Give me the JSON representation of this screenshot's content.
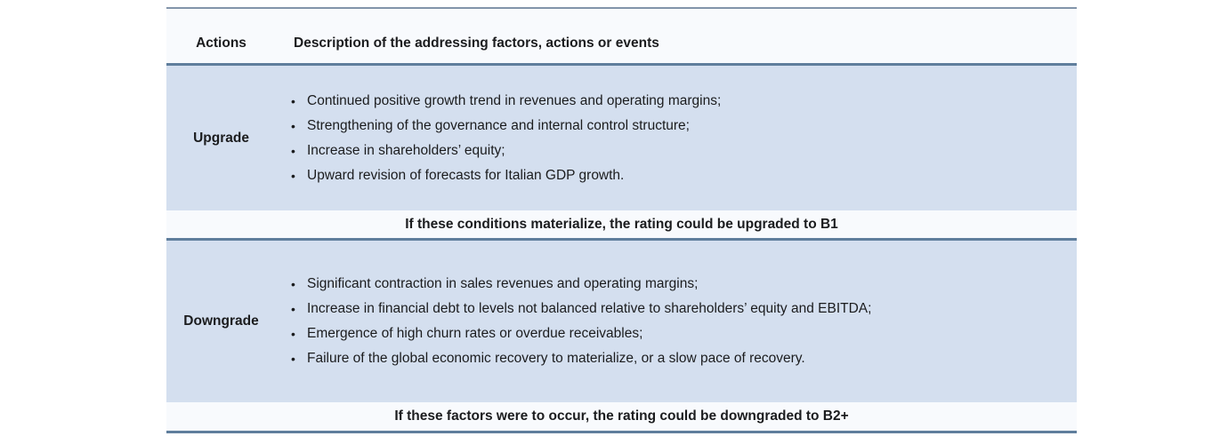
{
  "header": {
    "actions_label": "Actions",
    "description_label": "Description of the addressing factors, actions or events"
  },
  "sections": [
    {
      "action_label": "Upgrade",
      "bullets": [
        "Continued positive growth trend in revenues and operating margins;",
        "Strengthening of the governance and internal control structure;",
        "Increase in shareholders’ equity;",
        "Upward revision of forecasts for Italian GDP growth."
      ],
      "note": "If these conditions materialize, the rating could be upgraded to B1"
    },
    {
      "action_label": "Downgrade",
      "bullets": [
        "Significant contraction in sales revenues and operating margins;",
        "Increase in financial debt to levels not balanced relative to shareholders’ equity and EBITDA;",
        "Emergence of high churn rates or overdue receivables;",
        "Failure of the global economic recovery to materialize, or a slow pace of recovery."
      ],
      "note": "If these factors were to occur, the rating could be downgraded to B2+"
    }
  ],
  "icons": {
    "bullet": "•"
  },
  "colors": {
    "row_bg": "#d4dfef",
    "band_bg": "#f8fafd",
    "border_strong": "#5f7e9c",
    "border_thin": "#8295aa",
    "text": "#1b1c1e"
  }
}
